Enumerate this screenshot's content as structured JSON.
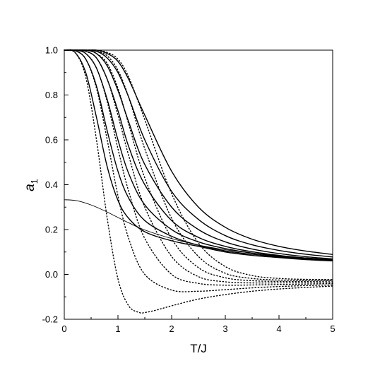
{
  "chart_data": {
    "type": "line",
    "xlabel": "T/J",
    "ylabel_main": "a",
    "ylabel_sub": "1",
    "xlim": [
      0,
      5
    ],
    "ylim": [
      -0.2,
      1.0
    ],
    "x_ticks": [
      0,
      1,
      2,
      3,
      4,
      5
    ],
    "x_tick_labels": [
      "0",
      "1",
      "2",
      "3",
      "4",
      "5"
    ],
    "y_ticks": [
      -0.2,
      0.0,
      0.2,
      0.4,
      0.6,
      0.8,
      1.0
    ],
    "y_tick_labels": [
      "-0.2",
      "0.0",
      "0.2",
      "0.4",
      "0.6",
      "0.8",
      "1.0"
    ],
    "grid": false,
    "legend": "none",
    "series": [
      {
        "style": "solid",
        "x": [
          0,
          0.2,
          0.4,
          0.6,
          0.8,
          1.0,
          1.2,
          1.5,
          2.0,
          2.5,
          3.0,
          3.5,
          4.0,
          4.5,
          5.0
        ],
        "y": [
          0.333,
          0.33,
          0.318,
          0.3,
          0.278,
          0.254,
          0.23,
          0.198,
          0.16,
          0.131,
          0.11,
          0.095,
          0.083,
          0.074,
          0.066
        ]
      },
      {
        "style": "solid",
        "x": [
          0,
          0.2,
          0.4,
          0.6,
          0.8,
          1.0,
          1.2,
          1.5,
          2.0,
          2.5,
          3.0,
          3.5,
          4.0,
          4.5,
          5.0
        ],
        "y": [
          1.0,
          0.99,
          0.9,
          0.7,
          0.48,
          0.33,
          0.25,
          0.19,
          0.15,
          0.125,
          0.1,
          0.085,
          0.075,
          0.066,
          0.06
        ]
      },
      {
        "style": "solid",
        "x": [
          0,
          0.2,
          0.4,
          0.6,
          0.8,
          1.0,
          1.2,
          1.5,
          2.0,
          2.5,
          3.0,
          3.5,
          4.0,
          4.5,
          5.0
        ],
        "y": [
          1.0,
          0.998,
          0.96,
          0.84,
          0.64,
          0.46,
          0.34,
          0.24,
          0.17,
          0.13,
          0.105,
          0.09,
          0.078,
          0.068,
          0.061
        ]
      },
      {
        "style": "solid",
        "x": [
          0,
          0.2,
          0.4,
          0.6,
          0.8,
          1.0,
          1.2,
          1.5,
          2.0,
          2.5,
          3.0,
          3.5,
          4.0,
          4.5,
          5.0
        ],
        "y": [
          1.0,
          1.0,
          0.985,
          0.92,
          0.78,
          0.6,
          0.45,
          0.31,
          0.2,
          0.145,
          0.115,
          0.095,
          0.081,
          0.07,
          0.062
        ]
      },
      {
        "style": "solid",
        "x": [
          0,
          0.2,
          0.4,
          0.6,
          0.8,
          1.0,
          1.2,
          1.5,
          2.0,
          2.5,
          3.0,
          3.5,
          4.0,
          4.5,
          5.0
        ],
        "y": [
          1.0,
          1.0,
          0.995,
          0.965,
          0.87,
          0.73,
          0.57,
          0.4,
          0.24,
          0.165,
          0.125,
          0.101,
          0.085,
          0.073,
          0.064
        ]
      },
      {
        "style": "solid",
        "x": [
          0,
          0.2,
          0.4,
          0.6,
          0.8,
          1.0,
          1.2,
          1.5,
          2.0,
          2.5,
          3.0,
          3.5,
          4.0,
          4.5,
          5.0
        ],
        "y": [
          1.0,
          1.0,
          1.0,
          0.985,
          0.93,
          0.82,
          0.68,
          0.49,
          0.3,
          0.2,
          0.145,
          0.113,
          0.093,
          0.079,
          0.069
        ]
      },
      {
        "style": "solid",
        "x": [
          0,
          0.2,
          0.4,
          0.6,
          0.8,
          1.0,
          1.2,
          1.5,
          2.0,
          2.5,
          3.0,
          3.5,
          4.0,
          4.5,
          5.0
        ],
        "y": [
          1.0,
          1.0,
          1.0,
          0.995,
          0.965,
          0.9,
          0.79,
          0.6,
          0.37,
          0.245,
          0.173,
          0.132,
          0.107,
          0.09,
          0.078
        ]
      },
      {
        "style": "solid",
        "x": [
          0,
          0.2,
          0.4,
          0.6,
          0.8,
          1.0,
          1.2,
          1.5,
          2.0,
          2.5,
          3.0,
          3.5,
          4.0,
          4.5,
          5.0
        ],
        "y": [
          1.0,
          1.0,
          1.0,
          1.0,
          0.985,
          0.95,
          0.87,
          0.71,
          0.46,
          0.3,
          0.21,
          0.157,
          0.125,
          0.104,
          0.089
        ]
      },
      {
        "style": "dotted",
        "x": [
          0,
          0.2,
          0.4,
          0.6,
          0.8,
          1.0,
          1.2,
          1.4,
          1.5,
          1.7,
          2.0,
          2.5,
          3.0,
          3.5,
          4.0,
          4.5,
          5.0
        ],
        "y": [
          1.0,
          0.99,
          0.88,
          0.6,
          0.25,
          -0.02,
          -0.14,
          -0.17,
          -0.17,
          -0.16,
          -0.14,
          -0.11,
          -0.09,
          -0.075,
          -0.065,
          -0.058,
          -0.052
        ]
      },
      {
        "style": "dotted",
        "x": [
          0,
          0.2,
          0.4,
          0.6,
          0.8,
          1.0,
          1.2,
          1.5,
          2.0,
          2.5,
          3.0,
          3.5,
          4.0,
          4.5,
          5.0
        ],
        "y": [
          1.0,
          0.998,
          0.96,
          0.83,
          0.6,
          0.35,
          0.16,
          0.0,
          -0.07,
          -0.075,
          -0.068,
          -0.06,
          -0.054,
          -0.05,
          -0.047
        ]
      },
      {
        "style": "dotted",
        "x": [
          0,
          0.2,
          0.4,
          0.6,
          0.8,
          1.0,
          1.2,
          1.5,
          2.0,
          2.5,
          3.0,
          3.5,
          4.0,
          4.5,
          5.0
        ],
        "y": [
          1.0,
          1.0,
          0.985,
          0.92,
          0.77,
          0.56,
          0.37,
          0.16,
          0.0,
          -0.04,
          -0.048,
          -0.047,
          -0.045,
          -0.043,
          -0.041
        ]
      },
      {
        "style": "dotted",
        "x": [
          0,
          0.2,
          0.4,
          0.6,
          0.8,
          1.0,
          1.2,
          1.5,
          2.0,
          2.5,
          3.0,
          3.5,
          4.0,
          4.5,
          5.0
        ],
        "y": [
          1.0,
          1.0,
          0.995,
          0.965,
          0.87,
          0.71,
          0.53,
          0.3,
          0.08,
          -0.01,
          -0.033,
          -0.038,
          -0.038,
          -0.037,
          -0.036
        ]
      },
      {
        "style": "dotted",
        "x": [
          0,
          0.2,
          0.4,
          0.6,
          0.8,
          1.0,
          1.2,
          1.5,
          2.0,
          2.5,
          3.0,
          3.5,
          4.0,
          4.5,
          5.0
        ],
        "y": [
          1.0,
          1.0,
          1.0,
          0.985,
          0.94,
          0.83,
          0.67,
          0.43,
          0.16,
          0.03,
          -0.015,
          -0.028,
          -0.031,
          -0.031,
          -0.03
        ]
      },
      {
        "style": "dotted",
        "x": [
          0,
          0.2,
          0.4,
          0.6,
          0.8,
          1.0,
          1.2,
          1.5,
          2.0,
          2.5,
          3.0,
          3.5,
          4.0,
          4.5,
          5.0
        ],
        "y": [
          1.0,
          1.0,
          1.0,
          0.995,
          0.975,
          0.91,
          0.79,
          0.56,
          0.25,
          0.08,
          0.005,
          -0.018,
          -0.025,
          -0.026,
          -0.026
        ]
      },
      {
        "style": "dotted",
        "x": [
          0,
          0.2,
          0.4,
          0.6,
          0.8,
          1.0,
          1.2,
          1.5,
          2.0,
          2.5,
          3.0,
          3.5,
          4.0,
          4.5,
          5.0
        ],
        "y": [
          1.0,
          1.0,
          1.0,
          1.0,
          0.99,
          0.96,
          0.88,
          0.69,
          0.36,
          0.14,
          0.035,
          -0.005,
          -0.018,
          -0.022,
          -0.023
        ]
      }
    ]
  }
}
